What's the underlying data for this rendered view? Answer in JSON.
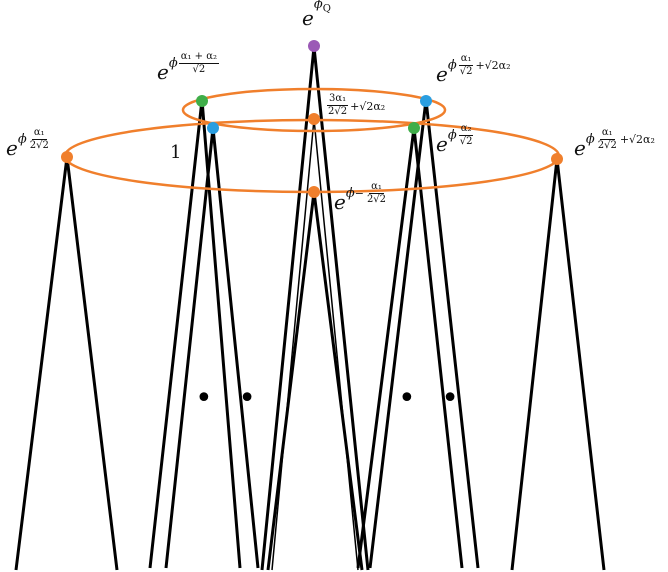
{
  "labels": {
    "top": {
      "base": "e",
      "exp": "ϕ",
      "sub": "Q"
    },
    "upper_left": {
      "base": "e",
      "exp": "ϕ",
      "num": "α₁ + α₂",
      "den": "√2"
    },
    "upper_right": {
      "base": "e",
      "exp": "ϕ",
      "num": "α₁",
      "den": "√2",
      "tail": "+√2α₂"
    },
    "center_upper": {
      "num": "3α₁",
      "den": "2√2",
      "tail": "+√2α₂"
    },
    "inner_right": {
      "base": "e",
      "exp": "ϕ",
      "num": "α₂",
      "den": "√2"
    },
    "center_lower": {
      "base": "e",
      "exp": "ϕ",
      "sign": "−",
      "num": "α₁",
      "den": "2√2"
    },
    "far_left": {
      "base": "e",
      "exp": "ϕ",
      "num": "α₁",
      "den": "2√2"
    },
    "far_right": {
      "base": "e",
      "exp": "ϕ",
      "num": "α₁",
      "den": "2√2",
      "tail": "+√2α₂"
    },
    "one": "1"
  },
  "ellipsis": {
    "left": "• •",
    "right": "• •"
  },
  "colors": {
    "orange": "#f07f2c",
    "green": "#3fae49",
    "blue": "#2a9ee0",
    "purple": "#9b59b6",
    "line": "#000000"
  }
}
